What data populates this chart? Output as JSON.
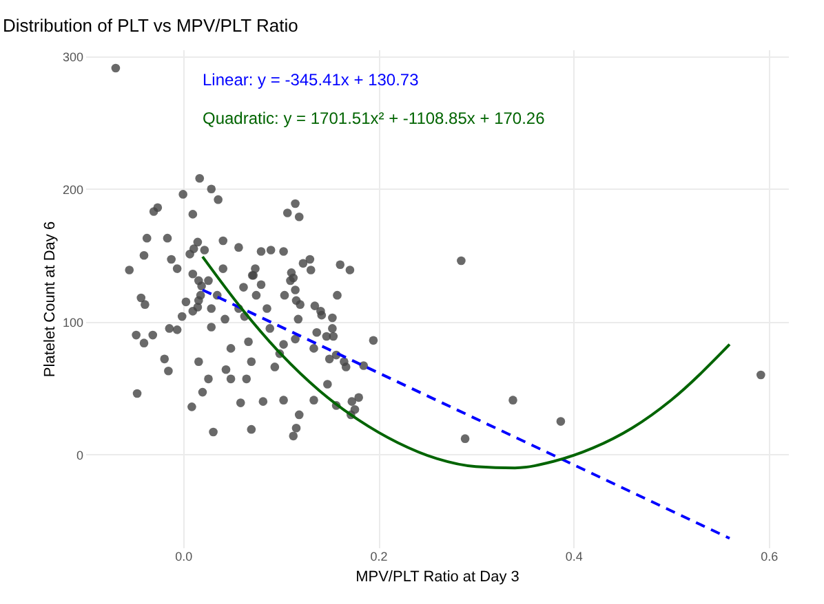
{
  "chart_data": {
    "type": "scatter",
    "title": "Distribution of PLT vs MPV/PLT Ratio",
    "xlabel": "MPV/PLT Ratio at Day 3",
    "ylabel": "Platelet Count at Day 6",
    "annotations": [
      "Linear: y = -345.41x + 130.73",
      "Quadratic: y = 1701.51x² + -1108.85x + 170.26"
    ],
    "xlim": [
      -0.1,
      0.62
    ],
    "ylim": [
      -70,
      305
    ],
    "xticks": [
      {
        "value": 0,
        "label": "0.0"
      },
      0.2,
      0.4,
      0.6
    ],
    "yticks": [
      0,
      100,
      200,
      300
    ],
    "grid": true,
    "series": [
      {
        "marker": "circle",
        "color": "#444444",
        "x": [
          -0.069,
          0.017,
          0.029,
          0.0,
          0.036,
          -0.026,
          -0.03,
          0.01,
          -0.037,
          -0.016,
          0.015,
          0.041,
          0.057,
          -0.04,
          0.007,
          0.011,
          0.022,
          -0.012,
          -0.055,
          -0.006,
          0.041,
          0.072,
          0.01,
          0.016,
          0.026,
          0.019,
          0.062,
          -0.043,
          -0.039,
          0.035,
          0.018,
          0.016,
          0.003,
          0.015,
          0.01,
          0.029,
          0.057,
          -0.001,
          0.043,
          0.063,
          -0.014,
          -0.006,
          0.029,
          -0.048,
          -0.031,
          -0.04,
          0.049,
          0.067,
          -0.019,
          -0.015,
          0.016,
          0.07,
          0.044,
          0.026,
          0.049,
          0.065,
          -0.047,
          0.02,
          0.009,
          0.059,
          0.031,
          0.07,
          0.08,
          0.09,
          0.103,
          0.123,
          0.13,
          0.131,
          0.161,
          0.171,
          0.074,
          0.071,
          0.111,
          0.113,
          0.11,
          0.08,
          0.115,
          0.075,
          0.104,
          0.158,
          0.116,
          0.12,
          0.135,
          0.141,
          0.142,
          0.086,
          0.118,
          0.153,
          0.089,
          0.137,
          0.153,
          0.147,
          0.154,
          0.115,
          0.103,
          0.134,
          0.195,
          0.099,
          0.15,
          0.157,
          0.165,
          0.167,
          0.185,
          0.094,
          0.148,
          0.082,
          0.103,
          0.134,
          0.157,
          0.173,
          0.18,
          0.176,
          0.172,
          0.119,
          0.116,
          0.113,
          0.115,
          0.107,
          0.119,
          0.285,
          0.338,
          0.289,
          0.387,
          0.592
        ],
        "values": [
          291,
          208,
          200,
          196,
          192,
          186,
          183,
          181,
          163,
          163,
          160,
          161,
          156,
          150,
          151,
          155,
          154,
          147,
          139,
          140,
          140,
          135,
          136,
          131,
          131,
          127,
          126,
          118,
          113,
          120,
          120,
          116,
          115,
          111,
          108,
          110,
          110,
          104,
          102,
          104,
          95,
          94,
          96,
          90,
          90,
          84,
          80,
          85,
          72,
          63,
          70,
          70,
          64,
          57,
          57,
          57,
          46,
          47,
          36,
          39,
          17,
          19,
          153,
          154,
          153,
          144,
          147,
          139,
          143,
          139,
          140,
          135,
          137,
          133,
          131,
          128,
          124,
          120,
          120,
          120,
          116,
          113,
          112,
          108,
          105,
          110,
          102,
          103,
          95,
          92,
          95,
          89,
          89,
          87,
          83,
          80,
          86,
          76,
          72,
          75,
          70,
          66,
          67,
          66,
          53,
          40,
          41,
          41,
          37,
          40,
          43,
          34,
          30,
          30,
          20,
          14,
          189,
          182,
          179,
          146,
          41,
          12,
          25,
          60
        ]
      },
      {
        "type": "line",
        "color": "#0000ff",
        "line_style": "dashed",
        "x": [
          0.02,
          0.56
        ],
        "values": [
          124,
          -63
        ]
      },
      {
        "type": "line",
        "color": "#006400",
        "line_style": "solid",
        "x": [
          0.02,
          0.06,
          0.1,
          0.14,
          0.18,
          0.22,
          0.26,
          0.3,
          0.34,
          0.38,
          0.42,
          0.46,
          0.5,
          0.56
        ],
        "values": [
          149,
          110,
          76,
          48,
          26,
          9,
          -3,
          -9,
          -10,
          -5,
          5,
          20,
          41,
          83
        ]
      }
    ]
  }
}
